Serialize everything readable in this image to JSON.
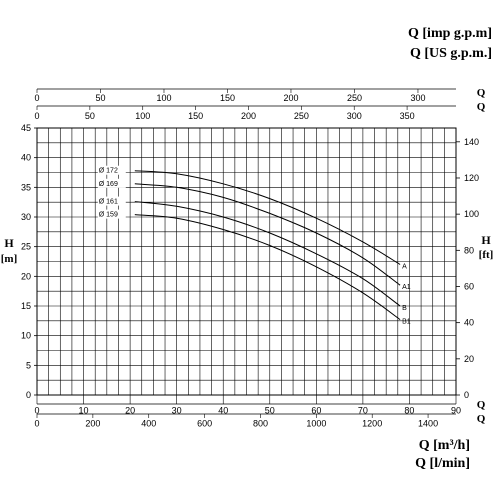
{
  "top_right_units": {
    "line1": "Q [imp g.p.m]",
    "line2": "Q [US g.p.m.]"
  },
  "bottom_right_units": {
    "line1": "Q [m³/h]",
    "line2": "Q [l/min]"
  },
  "chart_data": {
    "type": "line",
    "title": "",
    "grid": true,
    "y_left": {
      "label": "H",
      "unit": "[m]",
      "range": [
        0,
        45
      ],
      "ticks": [
        0,
        5,
        10,
        15,
        20,
        25,
        30,
        35,
        40,
        45
      ]
    },
    "y_right": {
      "label": "H",
      "unit": "[ft]",
      "ticks": [
        0,
        20,
        40,
        60,
        80,
        100,
        120,
        140
      ]
    },
    "x_bottom_primary": {
      "label": "Q",
      "unit": "m³/h",
      "range": [
        0,
        90
      ],
      "ticks": [
        0,
        10,
        20,
        30,
        40,
        50,
        60,
        70,
        80,
        90
      ]
    },
    "x_bottom_secondary": {
      "label": "Q",
      "unit": "l/min",
      "ticks": [
        0,
        200,
        400,
        600,
        800,
        1000,
        1200,
        1400
      ]
    },
    "x_top_imp": {
      "label": "Q",
      "unit": "imp g.p.m",
      "ticks": [
        0,
        50,
        100,
        150,
        200,
        250,
        300
      ]
    },
    "x_top_us": {
      "label": "Q",
      "unit": "US g.p.m.",
      "ticks": [
        0,
        50,
        100,
        150,
        200,
        250,
        300,
        350
      ]
    },
    "series": [
      {
        "name": "A",
        "diameter": "Ø 172",
        "x": [
          21,
          30,
          40,
          50,
          60,
          70,
          78
        ],
        "y": [
          37.8,
          37.3,
          35.6,
          33.1,
          29.8,
          25.8,
          22.0
        ]
      },
      {
        "name": "A1",
        "diameter": "Ø 169",
        "x": [
          21,
          30,
          40,
          50,
          60,
          70,
          78
        ],
        "y": [
          35.6,
          35.0,
          33.3,
          30.6,
          27.3,
          23.1,
          18.5
        ]
      },
      {
        "name": "B",
        "diameter": "Ø 161",
        "x": [
          21,
          30,
          40,
          50,
          60,
          70,
          78
        ],
        "y": [
          32.6,
          31.8,
          30.0,
          27.3,
          23.8,
          19.6,
          15.0
        ]
      },
      {
        "name": "B1",
        "diameter": "Ø 159",
        "x": [
          21,
          30,
          40,
          50,
          60,
          70,
          78
        ],
        "y": [
          30.4,
          29.8,
          27.9,
          25.2,
          21.6,
          17.2,
          12.7
        ]
      }
    ]
  }
}
